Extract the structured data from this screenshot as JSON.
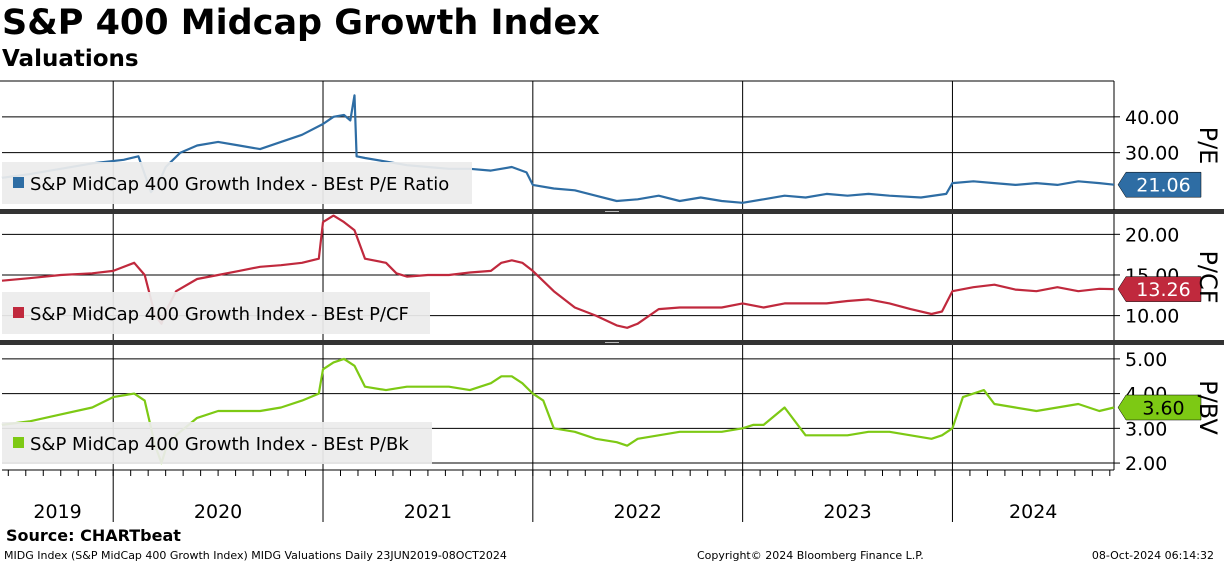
{
  "header": {
    "title": "S&P 400 Midcap Growth Index",
    "subtitle": "Valuations"
  },
  "footer": {
    "source": "Source: CHARTbeat",
    "left": "MIDG Index (S&P MidCap 400 Growth Index) MIDG Valuations  Daily 23JUN2019-08OCT2024",
    "middle": "Copyright© 2024 Bloomberg Finance L.P.",
    "right": "08-Oct-2024 06:14:32"
  },
  "colors": {
    "pe": "#2e6da4",
    "pcf": "#c0293d",
    "pbk": "#7dc914",
    "grid": "#000000",
    "legend_bg": "#ececec"
  },
  "chart_data": {
    "type": "line",
    "x_axis": {
      "years": [
        "2019",
        "2020",
        "2021",
        "2022",
        "2023",
        "2024"
      ],
      "start": 2019.47,
      "end": 2024.77
    },
    "panels": [
      {
        "name": "pe",
        "axis_title": "P/E",
        "legend": "S&P MidCap 400 Growth Index - BEst P/E Ratio",
        "last_value": "21.06",
        "ylim": [
          14,
          50
        ],
        "ticks": [
          30,
          40
        ],
        "tick_labels": [
          "30.00",
          "40.00"
        ],
        "series": {
          "x": [
            2019.47,
            2019.6,
            2019.75,
            2019.9,
            2020.05,
            2020.12,
            2020.18,
            2020.22,
            2020.25,
            2020.32,
            2020.4,
            2020.5,
            2020.6,
            2020.7,
            2020.8,
            2020.9,
            2021.0,
            2021.05,
            2021.1,
            2021.13,
            2021.15,
            2021.16,
            2021.2,
            2021.3,
            2021.4,
            2021.5,
            2021.6,
            2021.7,
            2021.8,
            2021.9,
            2021.97,
            2022.0,
            2022.1,
            2022.2,
            2022.3,
            2022.4,
            2022.5,
            2022.6,
            2022.7,
            2022.8,
            2022.9,
            2023.0,
            2023.1,
            2023.2,
            2023.3,
            2023.4,
            2023.5,
            2023.6,
            2023.7,
            2023.85,
            2023.97,
            2024.0,
            2024.1,
            2024.2,
            2024.3,
            2024.4,
            2024.5,
            2024.6,
            2024.7,
            2024.77
          ],
          "values": [
            23,
            24,
            25.5,
            27,
            28,
            29,
            19,
            22,
            26,
            30,
            32,
            33,
            32,
            31,
            33,
            35,
            38,
            40,
            40.5,
            39,
            46,
            29,
            28.5,
            27.5,
            26.5,
            26,
            25.5,
            25.5,
            25,
            26,
            24.5,
            21,
            20,
            19.5,
            18,
            16.5,
            17,
            18,
            16.5,
            17.5,
            16.5,
            16,
            17,
            18,
            17.5,
            18.5,
            18,
            18.5,
            18,
            17.5,
            18.5,
            21.5,
            22,
            21.5,
            21,
            21.5,
            21,
            22,
            21.5,
            21.06
          ]
        }
      },
      {
        "name": "pcf",
        "axis_title": "P/CF",
        "legend": "S&P MidCap 400 Growth Index - BEst P/CF",
        "last_value": "13.26",
        "ylim": [
          7,
          22.5
        ],
        "ticks": [
          10,
          15,
          20
        ],
        "tick_labels": [
          "10.00",
          "15.00",
          "20.00"
        ],
        "series": {
          "x": [
            2019.47,
            2019.6,
            2019.75,
            2019.9,
            2020.0,
            2020.1,
            2020.15,
            2020.2,
            2020.23,
            2020.25,
            2020.3,
            2020.4,
            2020.5,
            2020.6,
            2020.7,
            2020.8,
            2020.9,
            2020.98,
            2021.0,
            2021.05,
            2021.1,
            2021.15,
            2021.2,
            2021.3,
            2021.35,
            2021.4,
            2021.5,
            2021.6,
            2021.7,
            2021.8,
            2021.85,
            2021.9,
            2021.95,
            2022.0,
            2022.1,
            2022.2,
            2022.3,
            2022.4,
            2022.45,
            2022.5,
            2022.6,
            2022.7,
            2022.8,
            2022.9,
            2023.0,
            2023.1,
            2023.2,
            2023.3,
            2023.4,
            2023.5,
            2023.6,
            2023.7,
            2023.8,
            2023.9,
            2023.95,
            2024.0,
            2024.1,
            2024.2,
            2024.3,
            2024.4,
            2024.5,
            2024.6,
            2024.7,
            2024.77
          ],
          "values": [
            14.3,
            14.6,
            15,
            15.2,
            15.5,
            16.5,
            15,
            10,
            9,
            10.5,
            13,
            14.5,
            15,
            15.5,
            16,
            16.2,
            16.5,
            17,
            21.5,
            22.3,
            21.5,
            20.5,
            17,
            16.5,
            15.2,
            14.8,
            15,
            15,
            15.3,
            15.5,
            16.5,
            16.8,
            16.5,
            15.5,
            13,
            11,
            10,
            8.8,
            8.5,
            9,
            10.8,
            11,
            11,
            11,
            11.5,
            11,
            11.5,
            11.5,
            11.5,
            11.8,
            12,
            11.5,
            10.8,
            10.2,
            10.5,
            13,
            13.5,
            13.8,
            13.2,
            13,
            13.5,
            13,
            13.3,
            13.26
          ]
        }
      },
      {
        "name": "pbk",
        "axis_title": "P/BV",
        "legend": "S&P MidCap 400 Growth Index - BEst P/Bk",
        "last_value": "3.60",
        "ylim": [
          1.8,
          5.4
        ],
        "ticks": [
          2,
          3,
          4,
          5
        ],
        "tick_labels": [
          "2.00",
          "3.00",
          "4.00",
          "5.00"
        ],
        "series": {
          "x": [
            2019.47,
            2019.6,
            2019.75,
            2019.9,
            2020.0,
            2020.1,
            2020.15,
            2020.2,
            2020.23,
            2020.25,
            2020.3,
            2020.4,
            2020.5,
            2020.6,
            2020.7,
            2020.8,
            2020.9,
            2020.98,
            2021.0,
            2021.05,
            2021.1,
            2021.15,
            2021.2,
            2021.3,
            2021.4,
            2021.5,
            2021.6,
            2021.7,
            2021.8,
            2021.85,
            2021.9,
            2021.95,
            2022.0,
            2022.05,
            2022.1,
            2022.2,
            2022.3,
            2022.4,
            2022.45,
            2022.5,
            2022.6,
            2022.7,
            2022.8,
            2022.9,
            2023.0,
            2023.05,
            2023.1,
            2023.2,
            2023.3,
            2023.4,
            2023.5,
            2023.6,
            2023.7,
            2023.8,
            2023.9,
            2023.95,
            2024.0,
            2024.05,
            2024.1,
            2024.15,
            2024.2,
            2024.3,
            2024.4,
            2024.5,
            2024.6,
            2024.7,
            2024.77
          ],
          "values": [
            3.1,
            3.2,
            3.4,
            3.6,
            3.9,
            4.0,
            3.8,
            2.5,
            2.0,
            2.4,
            2.8,
            3.3,
            3.5,
            3.5,
            3.5,
            3.6,
            3.8,
            4.0,
            4.7,
            4.9,
            5.0,
            4.8,
            4.2,
            4.1,
            4.2,
            4.2,
            4.2,
            4.1,
            4.3,
            4.5,
            4.5,
            4.3,
            4.0,
            3.8,
            3.0,
            2.9,
            2.7,
            2.6,
            2.5,
            2.7,
            2.8,
            2.9,
            2.9,
            2.9,
            3.0,
            3.1,
            3.1,
            3.6,
            2.8,
            2.8,
            2.8,
            2.9,
            2.9,
            2.8,
            2.7,
            2.8,
            3.0,
            3.9,
            4.0,
            4.1,
            3.7,
            3.6,
            3.5,
            3.6,
            3.7,
            3.5,
            3.6
          ]
        }
      }
    ]
  }
}
